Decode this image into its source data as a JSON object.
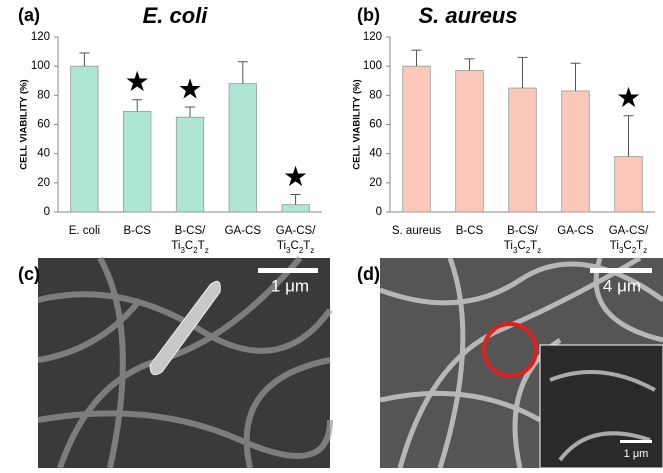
{
  "chart_data": [
    {
      "type": "bar",
      "panel": "(a)",
      "title": "E. coli",
      "y_label": "CELL VIABILITY (%)",
      "categories": [
        "E. coli",
        "B-CS",
        "B-CS/Ti3C2Tz",
        "GA-CS",
        "GA-CS/Ti3C2Tz"
      ],
      "values": [
        100,
        69,
        65,
        88,
        5
      ],
      "errors": [
        9,
        8,
        7,
        15,
        7
      ],
      "markers": [
        null,
        "★",
        "★",
        null,
        "★"
      ],
      "color": "#aee5d5",
      "ylim": [
        0,
        120
      ],
      "yticks": [
        0,
        20,
        40,
        60,
        80,
        100,
        120
      ]
    },
    {
      "type": "bar",
      "panel": "(b)",
      "title": "S. aureus",
      "y_label": "CELL VIABILITY (%)",
      "categories": [
        "S. aureus",
        "B-CS",
        "B-CS/Ti3C2Tz",
        "GA-CS",
        "GA-CS/Ti3C2Tz"
      ],
      "values": [
        100,
        97,
        85,
        83,
        38
      ],
      "errors": [
        11,
        8,
        21,
        19,
        28
      ],
      "markers": [
        null,
        null,
        null,
        null,
        "★"
      ],
      "color": "#f9c8b8",
      "ylim": [
        0,
        120
      ],
      "yticks": [
        0,
        20,
        40,
        60,
        80,
        100,
        120
      ]
    }
  ],
  "images": [
    {
      "panel": "(c)",
      "scale": "1 μm"
    },
    {
      "panel": "(d)",
      "scale": "4 μm",
      "inset_scale": "1 μm"
    }
  ]
}
